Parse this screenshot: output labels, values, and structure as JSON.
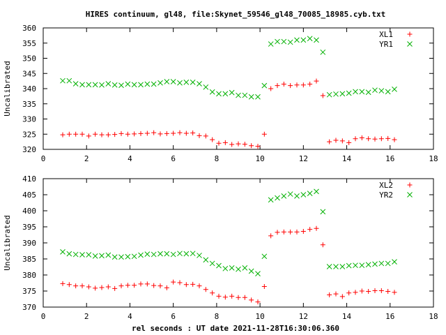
{
  "chart_data": [
    {
      "type": "scatter",
      "title": "HIRES continuum, gl48, file:Skynet_59546_gl48_70085_18985.cyb.txt",
      "ylabel": "Uncalibrated",
      "xlabel": "",
      "xlim": [
        0,
        18
      ],
      "ylim": [
        320,
        360
      ],
      "xticks": [
        0,
        2,
        4,
        6,
        8,
        10,
        12,
        14,
        16,
        18
      ],
      "yticks": [
        320,
        325,
        330,
        335,
        340,
        345,
        350,
        355,
        360
      ],
      "legend_position": "top-right",
      "x": [
        0.9,
        1.2,
        1.5,
        1.8,
        2.1,
        2.4,
        2.7,
        3.0,
        3.3,
        3.6,
        3.9,
        4.2,
        4.5,
        4.8,
        5.1,
        5.4,
        5.7,
        6.0,
        6.3,
        6.6,
        6.9,
        7.2,
        7.5,
        7.8,
        8.1,
        8.4,
        8.7,
        9.0,
        9.3,
        9.6,
        9.9,
        10.2,
        10.5,
        10.8,
        11.1,
        11.4,
        11.7,
        12.0,
        12.3,
        12.6,
        12.9,
        13.2,
        13.5,
        13.8,
        14.1,
        14.4,
        14.7,
        15.0,
        15.3,
        15.6,
        15.9,
        16.2
      ],
      "series": [
        {
          "name": "XL1",
          "color": "#ff0000",
          "marker": "plus",
          "values": [
            324.8,
            325.0,
            325.0,
            325.0,
            324.4,
            325.0,
            324.8,
            324.8,
            324.9,
            325.2,
            325.0,
            325.1,
            325.2,
            325.3,
            325.5,
            325.1,
            325.2,
            325.3,
            325.5,
            325.3,
            325.4,
            324.5,
            324.4,
            323.2,
            322.0,
            322.2,
            321.6,
            321.8,
            321.7,
            321.2,
            321.0,
            325.0,
            340.0,
            341.0,
            341.5,
            341.0,
            341.2,
            341.2,
            341.5,
            342.5,
            337.7,
            322.5,
            323.0,
            322.8,
            322.2,
            323.5,
            323.8,
            323.5,
            323.4,
            323.5,
            323.6,
            323.2
          ]
        },
        {
          "name": "YR1",
          "color": "#00b000",
          "marker": "cross",
          "values": [
            342.6,
            342.6,
            341.6,
            341.3,
            341.3,
            341.3,
            341.2,
            341.6,
            341.2,
            341.1,
            341.5,
            341.3,
            341.3,
            341.5,
            341.5,
            341.9,
            342.3,
            342.3,
            341.9,
            342.1,
            342.1,
            341.6,
            340.5,
            338.9,
            338.3,
            338.3,
            338.7,
            337.8,
            337.8,
            337.3,
            337.3,
            341.0,
            354.7,
            355.5,
            355.5,
            355.3,
            356.0,
            356.0,
            356.5,
            356.0,
            352.0,
            338.0,
            338.2,
            338.3,
            338.5,
            339.0,
            339.0,
            338.8,
            339.5,
            339.3,
            339.0,
            339.8
          ]
        }
      ]
    },
    {
      "type": "scatter",
      "title": "",
      "ylabel": "Uncalibrated",
      "xlabel": "rel seconds : UT date 2021-11-28T16:30:06.360",
      "xlim": [
        0,
        18
      ],
      "ylim": [
        370,
        410
      ],
      "xticks": [
        0,
        2,
        4,
        6,
        8,
        10,
        12,
        14,
        16,
        18
      ],
      "yticks": [
        370,
        375,
        380,
        385,
        390,
        395,
        400,
        405,
        410
      ],
      "legend_position": "top-right",
      "x": [
        0.9,
        1.2,
        1.5,
        1.8,
        2.1,
        2.4,
        2.7,
        3.0,
        3.3,
        3.6,
        3.9,
        4.2,
        4.5,
        4.8,
        5.1,
        5.4,
        5.7,
        6.0,
        6.3,
        6.6,
        6.9,
        7.2,
        7.5,
        7.8,
        8.1,
        8.4,
        8.7,
        9.0,
        9.3,
        9.6,
        9.9,
        10.2,
        10.5,
        10.8,
        11.1,
        11.4,
        11.7,
        12.0,
        12.3,
        12.6,
        12.9,
        13.2,
        13.5,
        13.8,
        14.1,
        14.4,
        14.7,
        15.0,
        15.3,
        15.6,
        15.9,
        16.2
      ],
      "series": [
        {
          "name": "XL2",
          "color": "#ff0000",
          "marker": "plus",
          "values": [
            377.3,
            377.0,
            376.6,
            376.6,
            376.3,
            375.9,
            376.1,
            376.3,
            375.8,
            376.6,
            376.8,
            376.8,
            377.2,
            377.2,
            376.7,
            376.6,
            376.0,
            377.8,
            377.6,
            377.0,
            377.1,
            376.6,
            375.5,
            374.4,
            373.4,
            373.1,
            373.4,
            373.0,
            373.0,
            372.2,
            371.6,
            376.4,
            392.2,
            393.3,
            393.4,
            393.4,
            393.4,
            393.6,
            394.2,
            394.5,
            389.4,
            373.8,
            374.1,
            373.3,
            374.4,
            374.6,
            375.0,
            374.9,
            375.1,
            375.1,
            374.9,
            374.6
          ]
        },
        {
          "name": "YR2",
          "color": "#00b000",
          "marker": "cross",
          "values": [
            387.2,
            386.6,
            386.4,
            386.3,
            386.3,
            385.9,
            386.0,
            386.2,
            385.6,
            385.6,
            385.7,
            385.8,
            386.2,
            386.5,
            386.4,
            386.6,
            386.6,
            386.4,
            386.7,
            386.6,
            386.7,
            386.1,
            384.7,
            383.6,
            382.9,
            382.0,
            382.2,
            381.8,
            382.2,
            381.2,
            380.4,
            385.8,
            403.4,
            404.0,
            404.6,
            405.2,
            404.6,
            405.0,
            405.4,
            406.0,
            399.7,
            382.6,
            382.6,
            382.6,
            382.9,
            383.0,
            383.0,
            383.2,
            383.4,
            383.6,
            383.6,
            384.1
          ]
        }
      ]
    }
  ]
}
